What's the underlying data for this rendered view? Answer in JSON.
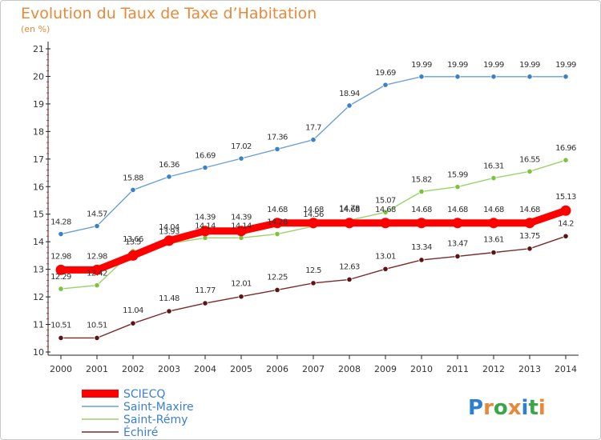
{
  "brand": {
    "logo_text": "Proxiti"
  },
  "chart_data": {
    "type": "line",
    "title": "Evolution du Taux de Taxe d’Habitation",
    "subtitle": "(en %)",
    "x": [
      "2000",
      "2001",
      "2002",
      "2003",
      "2004",
      "2005",
      "2006",
      "2007",
      "2008",
      "2009",
      "2010",
      "2011",
      "2012",
      "2013",
      "2014"
    ],
    "ylim": [
      10,
      21
    ],
    "yticks": [
      10,
      11,
      12,
      13,
      14,
      15,
      16,
      17,
      18,
      19,
      20,
      21
    ],
    "grid": false,
    "legend_position": "bottom-left",
    "series": [
      {
        "name": "SCIECQ",
        "color": "#ff0000",
        "point_color": "#ff0000",
        "values": [
          12.98,
          12.98,
          13.5,
          14.04,
          14.39,
          14.39,
          14.68,
          14.68,
          14.68,
          14.68,
          14.68,
          14.68,
          14.68,
          14.68,
          15.13
        ],
        "labels": [
          "12.98",
          "12.98",
          "13.5",
          "14.04",
          "14.39",
          "14.39",
          "14.68",
          "14.68",
          "14.68",
          "14.68",
          "14.68",
          "14.68",
          "14.68",
          "14.68",
          "15.13"
        ]
      },
      {
        "name": "Saint-Maxire",
        "color": "#6a9fd8",
        "point_color": "#3a82c4",
        "values": [
          14.28,
          14.57,
          15.88,
          16.36,
          16.69,
          17.02,
          17.36,
          17.7,
          18.94,
          19.69,
          19.99,
          19.99,
          19.99,
          19.99,
          19.99
        ],
        "labels": [
          "14.28",
          "14.57",
          "15.88",
          "16.36",
          "16.69",
          "17.02",
          "17.36",
          "17.7",
          "18.94",
          "19.69",
          "19.99",
          "19.99",
          "19.99",
          "19.99",
          "19.99"
        ]
      },
      {
        "name": "Saint-Rémy",
        "color": "#99d36a",
        "point_color": "#7cc23e",
        "values": [
          12.29,
          12.42,
          13.66,
          13.93,
          14.14,
          14.14,
          14.28,
          14.56,
          14.78,
          15.07,
          15.82,
          15.99,
          16.31,
          16.55,
          16.96
        ],
        "labels": [
          "12.29",
          "12.42",
          "13.66",
          "13.93",
          "14.14",
          "14.14",
          "14.28",
          "14.56",
          "14.78",
          "15.07",
          "15.82",
          "15.99",
          "16.31",
          "16.55",
          "16.96"
        ]
      },
      {
        "name": "Échiré",
        "color": "#7a2a2a",
        "point_color": "#5a1414",
        "values": [
          10.51,
          10.51,
          11.04,
          11.48,
          11.77,
          12.01,
          12.25,
          12.5,
          12.63,
          13.01,
          13.34,
          13.47,
          13.61,
          13.75,
          14.2
        ],
        "labels": [
          "10.51",
          "10.51",
          "11.04",
          "11.48",
          "11.77",
          "12.01",
          "12.25",
          "12.5",
          "12.63",
          "13.01",
          "13.34",
          "13.47",
          "13.61",
          "13.75",
          "14.2"
        ]
      }
    ]
  }
}
